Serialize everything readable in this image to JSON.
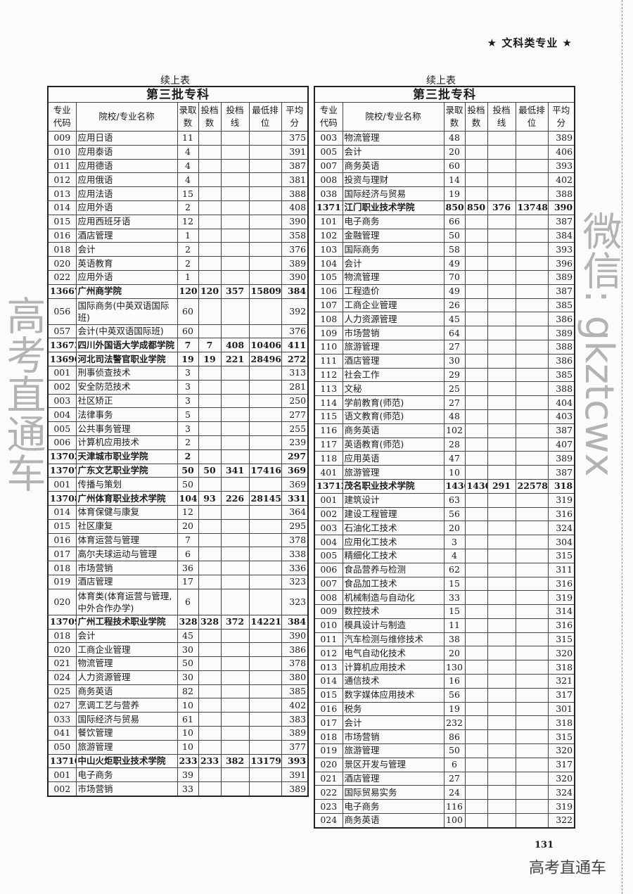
{
  "page_header": "★ 文科类专业 ★",
  "page_number": "131",
  "watermark": {
    "line1": "高考直通车",
    "line2": "微信: gkztcwx"
  },
  "logo_text": "高考直通车",
  "columns": [
    "专业代码",
    "院校/专业名称",
    "录取数",
    "投档数",
    "投档线",
    "最低排位",
    "平均分"
  ],
  "left": {
    "continued_label": "续上表",
    "section_title": "第三批专科",
    "rows": [
      [
        "009",
        "应用日语",
        "11",
        "",
        "",
        "",
        "375",
        0
      ],
      [
        "010",
        "应用泰语",
        "4",
        "",
        "",
        "",
        "391",
        0
      ],
      [
        "011",
        "应用德语",
        "4",
        "",
        "",
        "",
        "387",
        0
      ],
      [
        "012",
        "应用俄语",
        "4",
        "",
        "",
        "",
        "381",
        0
      ],
      [
        "013",
        "应用法语",
        "15",
        "",
        "",
        "",
        "388",
        0
      ],
      [
        "014",
        "应用外语",
        "2",
        "",
        "",
        "",
        "408",
        0
      ],
      [
        "015",
        "应用西班牙语",
        "12",
        "",
        "",
        "",
        "390",
        0
      ],
      [
        "016",
        "酒店管理",
        "1",
        "",
        "",
        "",
        "358",
        0
      ],
      [
        "018",
        "会计",
        "2",
        "",
        "",
        "",
        "376",
        0
      ],
      [
        "020",
        "英语教育",
        "2",
        "",
        "",
        "",
        "389",
        0
      ],
      [
        "022",
        "应用外语",
        "1",
        "",
        "",
        "",
        "390",
        0
      ],
      [
        "13667",
        "广州商学院",
        "120",
        "120",
        "357",
        "158099",
        "384",
        1
      ],
      [
        "056",
        "国际商务(中英双语国际班)",
        "60",
        "",
        "",
        "",
        "392",
        0
      ],
      [
        "057",
        "会计(中英双语国际班)",
        "60",
        "",
        "",
        "",
        "376",
        0
      ],
      [
        "13673",
        "四川外国语大学成都学院",
        "7",
        "7",
        "408",
        "104060",
        "411",
        1
      ],
      [
        "13690",
        "河北司法警官职业学院",
        "19",
        "19",
        "221",
        "284969",
        "272",
        1
      ],
      [
        "001",
        "刑事侦查技术",
        "3",
        "",
        "",
        "",
        "313",
        0
      ],
      [
        "002",
        "安全防范技术",
        "3",
        "",
        "",
        "",
        "281",
        0
      ],
      [
        "003",
        "社区矫正",
        "3",
        "",
        "",
        "",
        "250",
        0
      ],
      [
        "004",
        "法律事务",
        "5",
        "",
        "",
        "",
        "277",
        0
      ],
      [
        "005",
        "公共事务管理",
        "3",
        "",
        "",
        "",
        "255",
        0
      ],
      [
        "006",
        "计算机应用技术",
        "2",
        "",
        "",
        "",
        "239",
        0
      ],
      [
        "13702",
        "天津城市职业学院",
        "2",
        "",
        "",
        "",
        "297",
        1
      ],
      [
        "13707",
        "广东文艺职业学院",
        "50",
        "50",
        "341",
        "174168",
        "369",
        1
      ],
      [
        "001",
        "传播与策划",
        "50",
        "",
        "",
        "",
        "369",
        0
      ],
      [
        "13708",
        "广州体育职业技术学院",
        "104",
        "93",
        "226",
        "281456",
        "331",
        1
      ],
      [
        "014",
        "体育保健与康复",
        "12",
        "",
        "",
        "",
        "364",
        0
      ],
      [
        "015",
        "社区康复",
        "20",
        "",
        "",
        "",
        "295",
        0
      ],
      [
        "016",
        "体育运营与管理",
        "7",
        "",
        "",
        "",
        "378",
        0
      ],
      [
        "017",
        "高尔夫球运动与管理",
        "6",
        "",
        "",
        "",
        "338",
        0
      ],
      [
        "018",
        "市场营销",
        "36",
        "",
        "",
        "",
        "336",
        0
      ],
      [
        "019",
        "酒店管理",
        "17",
        "",
        "",
        "",
        "323",
        0
      ],
      [
        "020",
        "体育类(体育运营与管理,中外合作办学)",
        "6",
        "",
        "",
        "",
        "323",
        0
      ],
      [
        "13709",
        "广州工程技术职业学院",
        "328",
        "328",
        "372",
        "142219",
        "384",
        1
      ],
      [
        "018",
        "会计",
        "45",
        "",
        "",
        "",
        "390",
        0
      ],
      [
        "020",
        "工商企业管理",
        "30",
        "",
        "",
        "",
        "386",
        0
      ],
      [
        "021",
        "物流管理",
        "50",
        "",
        "",
        "",
        "378",
        0
      ],
      [
        "024",
        "人力资源管理",
        "30",
        "",
        "",
        "",
        "380",
        0
      ],
      [
        "025",
        "商务英语",
        "82",
        "",
        "",
        "",
        "385",
        0
      ],
      [
        "027",
        "烹调工艺与营养",
        "10",
        "",
        "",
        "",
        "402",
        0
      ],
      [
        "033",
        "国际经济与贸易",
        "61",
        "",
        "",
        "",
        "383",
        0
      ],
      [
        "041",
        "餐饮管理",
        "10",
        "",
        "",
        "",
        "389",
        0
      ],
      [
        "050",
        "旅游管理",
        "10",
        "",
        "",
        "",
        "377",
        0
      ],
      [
        "13710",
        "中山火炬职业技术学院",
        "233",
        "233",
        "382",
        "131793",
        "393",
        1
      ],
      [
        "001",
        "电子商务",
        "39",
        "",
        "",
        "",
        "391",
        0
      ],
      [
        "002",
        "市场营销",
        "33",
        "",
        "",
        "",
        "389",
        0
      ]
    ]
  },
  "right": {
    "continued_label": "续上表",
    "section_title": "第三批专科",
    "rows": [
      [
        "003",
        "物流管理",
        "48",
        "",
        "",
        "",
        "389",
        0
      ],
      [
        "005",
        "会计",
        "20",
        "",
        "",
        "",
        "406",
        0
      ],
      [
        "007",
        "商务英语",
        "60",
        "",
        "",
        "",
        "393",
        0
      ],
      [
        "008",
        "投资与理财",
        "14",
        "",
        "",
        "",
        "402",
        0
      ],
      [
        "038",
        "国际经济与贸易",
        "19",
        "",
        "",
        "",
        "388",
        0
      ],
      [
        "13711",
        "江门职业技术学院",
        "850",
        "850",
        "376",
        "137482",
        "390",
        1
      ],
      [
        "101",
        "电子商务",
        "66",
        "",
        "",
        "",
        "387",
        0
      ],
      [
        "102",
        "金融管理",
        "50",
        "",
        "",
        "",
        "384",
        0
      ],
      [
        "103",
        "国际商务",
        "58",
        "",
        "",
        "",
        "393",
        0
      ],
      [
        "104",
        "会计",
        "49",
        "",
        "",
        "",
        "396",
        0
      ],
      [
        "105",
        "物流管理",
        "70",
        "",
        "",
        "",
        "389",
        0
      ],
      [
        "106",
        "工程造价",
        "49",
        "",
        "",
        "",
        "387",
        0
      ],
      [
        "107",
        "工商企业管理",
        "26",
        "",
        "",
        "",
        "385",
        0
      ],
      [
        "108",
        "人力资源管理",
        "45",
        "",
        "",
        "",
        "386",
        0
      ],
      [
        "109",
        "市场营销",
        "64",
        "",
        "",
        "",
        "389",
        0
      ],
      [
        "110",
        "旅游管理",
        "27",
        "",
        "",
        "",
        "388",
        0
      ],
      [
        "111",
        "酒店管理",
        "30",
        "",
        "",
        "",
        "386",
        0
      ],
      [
        "112",
        "社会工作",
        "29",
        "",
        "",
        "",
        "385",
        0
      ],
      [
        "113",
        "文秘",
        "25",
        "",
        "",
        "",
        "388",
        0
      ],
      [
        "114",
        "学前教育(师范)",
        "27",
        "",
        "",
        "",
        "404",
        0
      ],
      [
        "115",
        "语文教育(师范)",
        "48",
        "",
        "",
        "",
        "403",
        0
      ],
      [
        "116",
        "商务英语",
        "102",
        "",
        "",
        "",
        "387",
        0
      ],
      [
        "117",
        "英语教育(师范)",
        "28",
        "",
        "",
        "",
        "407",
        0
      ],
      [
        "118",
        "应用英语",
        "47",
        "",
        "",
        "",
        "389",
        0
      ],
      [
        "401",
        "旅游管理",
        "10",
        "",
        "",
        "",
        "387",
        0
      ],
      [
        "13712",
        "茂名职业技术学院",
        "1430",
        "1430",
        "291",
        "225789",
        "318",
        1
      ],
      [
        "001",
        "建筑设计",
        "63",
        "",
        "",
        "",
        "319",
        0
      ],
      [
        "002",
        "建设工程管理",
        "56",
        "",
        "",
        "",
        "316",
        0
      ],
      [
        "003",
        "石油化工技术",
        "20",
        "",
        "",
        "",
        "324",
        0
      ],
      [
        "004",
        "应用化工技术",
        "3",
        "",
        "",
        "",
        "304",
        0
      ],
      [
        "005",
        "精细化工技术",
        "4",
        "",
        "",
        "",
        "315",
        0
      ],
      [
        "006",
        "食品营养与检测",
        "62",
        "",
        "",
        "",
        "311",
        0
      ],
      [
        "007",
        "食品加工技术",
        "15",
        "",
        "",
        "",
        "316",
        0
      ],
      [
        "008",
        "机械制造与自动化",
        "33",
        "",
        "",
        "",
        "319",
        0
      ],
      [
        "009",
        "数控技术",
        "15",
        "",
        "",
        "",
        "314",
        0
      ],
      [
        "010",
        "模具设计与制造",
        "11",
        "",
        "",
        "",
        "316",
        0
      ],
      [
        "011",
        "汽车检测与维修技术",
        "38",
        "",
        "",
        "",
        "315",
        0
      ],
      [
        "012",
        "电气自动化技术",
        "20",
        "",
        "",
        "",
        "320",
        0
      ],
      [
        "013",
        "计算机应用技术",
        "130",
        "",
        "",
        "",
        "318",
        0
      ],
      [
        "014",
        "通信技术",
        "16",
        "",
        "",
        "",
        "321",
        0
      ],
      [
        "015",
        "数字媒体应用技术",
        "56",
        "",
        "",
        "",
        "317",
        0
      ],
      [
        "016",
        "税务",
        "19",
        "",
        "",
        "",
        "301",
        0
      ],
      [
        "017",
        "会计",
        "232",
        "",
        "",
        "",
        "318",
        0
      ],
      [
        "018",
        "市场营销",
        "86",
        "",
        "",
        "",
        "315",
        0
      ],
      [
        "019",
        "旅游管理",
        "50",
        "",
        "",
        "",
        "320",
        0
      ],
      [
        "020",
        "景区开发与管理",
        "6",
        "",
        "",
        "",
        "317",
        0
      ],
      [
        "021",
        "酒店管理",
        "27",
        "",
        "",
        "",
        "320",
        0
      ],
      [
        "022",
        "国际贸易实务",
        "24",
        "",
        "",
        "",
        "324",
        0
      ],
      [
        "023",
        "电子商务",
        "116",
        "",
        "",
        "",
        "319",
        0
      ],
      [
        "024",
        "商务英语",
        "100",
        "",
        "",
        "",
        "322",
        0
      ]
    ]
  }
}
